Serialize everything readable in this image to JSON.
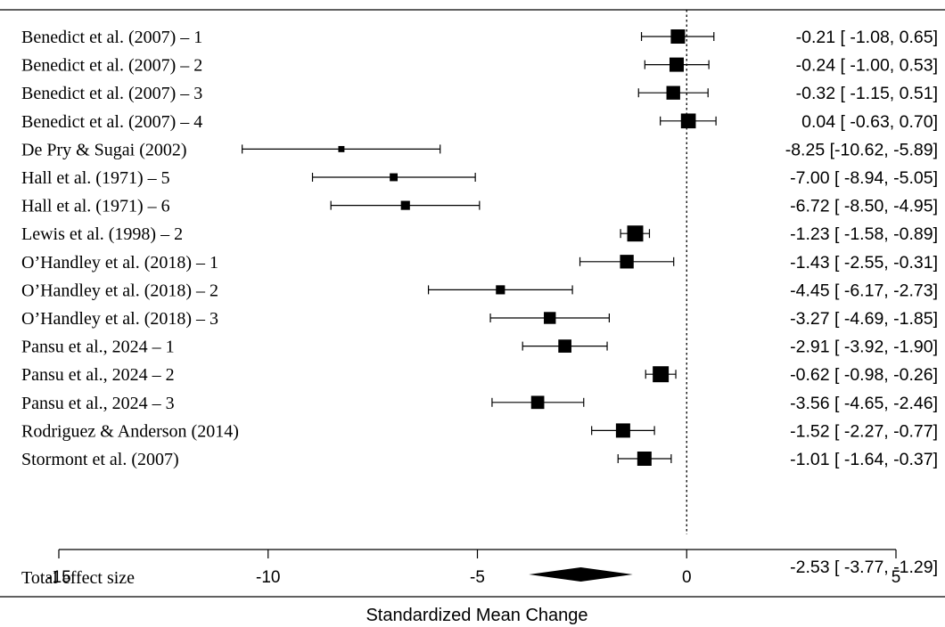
{
  "chart_data": {
    "type": "forest",
    "xlabel": "Standardized Mean Change",
    "xlim": [
      -15,
      5
    ],
    "xticks": [
      -15,
      -10,
      -5,
      0,
      5
    ],
    "tick_labels": [
      "-15",
      "-10",
      "-5",
      "0",
      "5"
    ],
    "reference_line": 0,
    "studies": [
      {
        "label": "Benedict et al. (2007) – 1",
        "estimate": -0.21,
        "lower": -1.08,
        "upper": 0.65,
        "ci_text": "-0.21 [ -1.08,  0.65]",
        "weight": 1.0
      },
      {
        "label": "Benedict et al. (2007) – 2",
        "estimate": -0.24,
        "lower": -1.0,
        "upper": 0.53,
        "ci_text": "-0.24 [ -1.00,  0.53]",
        "weight": 1.0
      },
      {
        "label": "Benedict et al. (2007) – 3",
        "estimate": -0.32,
        "lower": -1.15,
        "upper": 0.51,
        "ci_text": "-0.32 [ -1.15,  0.51]",
        "weight": 0.95
      },
      {
        "label": "Benedict et al. (2007) – 4",
        "estimate": 0.04,
        "lower": -0.63,
        "upper": 0.7,
        "ci_text": "0.04 [ -0.63,  0.70]",
        "weight": 1.05
      },
      {
        "label": "De Pry & Sugai (2002)",
        "estimate": -8.25,
        "lower": -10.62,
        "upper": -5.89,
        "ci_text": "-8.25 [-10.62, -5.89]",
        "weight": 0.3
      },
      {
        "label": "Hall et al. (1971) – 5",
        "estimate": -7.0,
        "lower": -8.94,
        "upper": -5.05,
        "ci_text": "-7.00 [ -8.94, -5.05]",
        "weight": 0.45
      },
      {
        "label": "Hall et al. (1971) – 6",
        "estimate": -6.72,
        "lower": -8.5,
        "upper": -4.95,
        "ci_text": "-6.72 [ -8.50, -4.95]",
        "weight": 0.55
      },
      {
        "label": "Lewis et al. (1998) – 2",
        "estimate": -1.23,
        "lower": -1.58,
        "upper": -0.89,
        "ci_text": "-1.23 [ -1.58, -0.89]",
        "weight": 1.15
      },
      {
        "label": "O’Handley et al. (2018) – 1",
        "estimate": -1.43,
        "lower": -2.55,
        "upper": -0.31,
        "ci_text": "-1.43 [ -2.55, -0.31]",
        "weight": 0.95
      },
      {
        "label": "O’Handley et al. (2018) – 2",
        "estimate": -4.45,
        "lower": -6.17,
        "upper": -2.73,
        "ci_text": "-4.45 [ -6.17, -2.73]",
        "weight": 0.55
      },
      {
        "label": "O’Handley et al. (2018) – 3",
        "estimate": -3.27,
        "lower": -4.69,
        "upper": -1.85,
        "ci_text": "-3.27 [ -4.69, -1.85]",
        "weight": 0.8
      },
      {
        "label": "Pansu et al., 2024 – 1",
        "estimate": -2.91,
        "lower": -3.92,
        "upper": -1.9,
        "ci_text": "-2.91 [ -3.92, -1.90]",
        "weight": 0.9
      },
      {
        "label": "Pansu et al., 2024 – 2",
        "estimate": -0.62,
        "lower": -0.98,
        "upper": -0.26,
        "ci_text": "-0.62 [ -0.98, -0.26]",
        "weight": 1.15
      },
      {
        "label": "Pansu et al., 2024 – 3",
        "estimate": -3.56,
        "lower": -4.65,
        "upper": -2.46,
        "ci_text": "-3.56 [ -4.65, -2.46]",
        "weight": 0.9
      },
      {
        "label": "Rodriguez & Anderson (2014)",
        "estimate": -1.52,
        "lower": -2.27,
        "upper": -0.77,
        "ci_text": "-1.52 [ -2.27, -0.77]",
        "weight": 1.0
      },
      {
        "label": "Stormont et al. (2007)",
        "estimate": -1.01,
        "lower": -1.64,
        "upper": -0.37,
        "ci_text": "-1.01 [ -1.64, -0.37]",
        "weight": 1.0
      }
    ],
    "summary": {
      "label": "Total effect size",
      "estimate": -2.53,
      "lower": -3.77,
      "upper": -1.29,
      "ci_text": "-2.53 [ -3.77, -1.29]"
    }
  }
}
